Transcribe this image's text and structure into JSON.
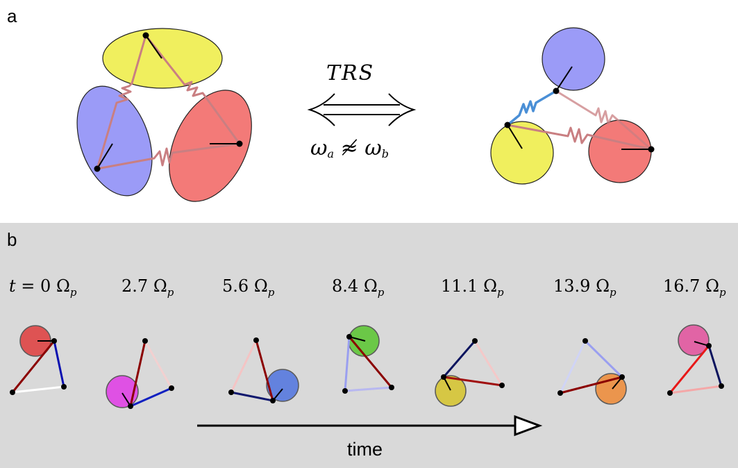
{
  "panels": {
    "a": {
      "label": "a"
    },
    "b": {
      "label": "b"
    }
  },
  "equivalence": {
    "arrow_label": "TRS",
    "freq_a": "ω",
    "freq_a_sub": "a",
    "relation": "≉",
    "freq_b": "ω",
    "freq_b_sub": "b"
  },
  "snapshots": {
    "times": [
      {
        "prefix": "t = ",
        "value": "0",
        "unit": "Ω",
        "unit_sub": "p"
      },
      {
        "prefix": "",
        "value": "2.7",
        "unit": "Ω",
        "unit_sub": "p"
      },
      {
        "prefix": "",
        "value": "5.6",
        "unit": "Ω",
        "unit_sub": "p"
      },
      {
        "prefix": "",
        "value": "8.4",
        "unit": "Ω",
        "unit_sub": "p"
      },
      {
        "prefix": "",
        "value": "11.1",
        "unit": "Ω",
        "unit_sub": "p"
      },
      {
        "prefix": "",
        "value": "13.9",
        "unit": "Ω",
        "unit_sub": "p"
      },
      {
        "prefix": "",
        "value": "16.7",
        "unit": "Ω",
        "unit_sub": "p"
      }
    ],
    "highlight_colors": [
      "#e03c3c",
      "#e13ae6",
      "#4f74e0",
      "#58c62e",
      "#d6c52b",
      "#ef8a35",
      "#e3509c"
    ],
    "time_axis_label": "time"
  },
  "colors": {
    "yellow": "#f0ef5e",
    "blue": "#9b9bf7",
    "red": "#f37a78",
    "spring_mauve": "#c97f82",
    "spring_blue": "#4a8fd6",
    "panel_b_bg": "#d9d9d9"
  }
}
